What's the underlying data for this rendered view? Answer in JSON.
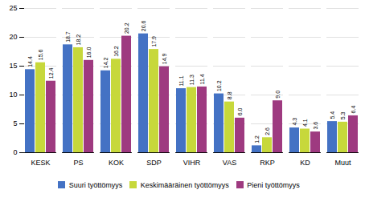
{
  "chart_data": {
    "type": "bar",
    "categories": [
      "KESK",
      "PS",
      "KOK",
      "SDP",
      "VIHR",
      "VAS",
      "RKP",
      "KD",
      "Muut"
    ],
    "series": [
      {
        "name": "Suuri työttömyys",
        "color": "#4472C4",
        "values": [
          14.4,
          18.7,
          14.2,
          20.6,
          11.1,
          10.2,
          1.2,
          4.3,
          5.4
        ],
        "value_labels": [
          "14.4",
          "18.7",
          "14.2",
          "20.6",
          "11.1",
          "10.2",
          "1.2",
          "4.3",
          "5.4"
        ]
      },
      {
        "name": "Keskimääräinen työttömyys",
        "color": "#C7D83B",
        "values": [
          15.6,
          18.2,
          16.2,
          17.9,
          11.3,
          8.8,
          2.6,
          4.1,
          5.3
        ],
        "value_labels": [
          "15.6",
          "18.2",
          "16.2",
          "17.9",
          "11.3",
          "8.8",
          "2.6",
          "4.1",
          "5.3"
        ]
      },
      {
        "name": "Pieni työttömyys",
        "color": "#9E3A80",
        "values": [
          12.4,
          16.0,
          20.2,
          14.9,
          11.4,
          6.0,
          9.0,
          3.6,
          6.4
        ],
        "value_labels": [
          "12.4",
          "16.0",
          "20.2",
          "14.9",
          "11.4",
          "6.0",
          "9.0",
          "3.6",
          "6.4"
        ]
      }
    ],
    "ylim": [
      0,
      25
    ],
    "yticks": [
      0,
      5,
      10,
      15,
      20,
      25
    ],
    "grid": true,
    "data_labels": true,
    "legend": "bottom"
  }
}
